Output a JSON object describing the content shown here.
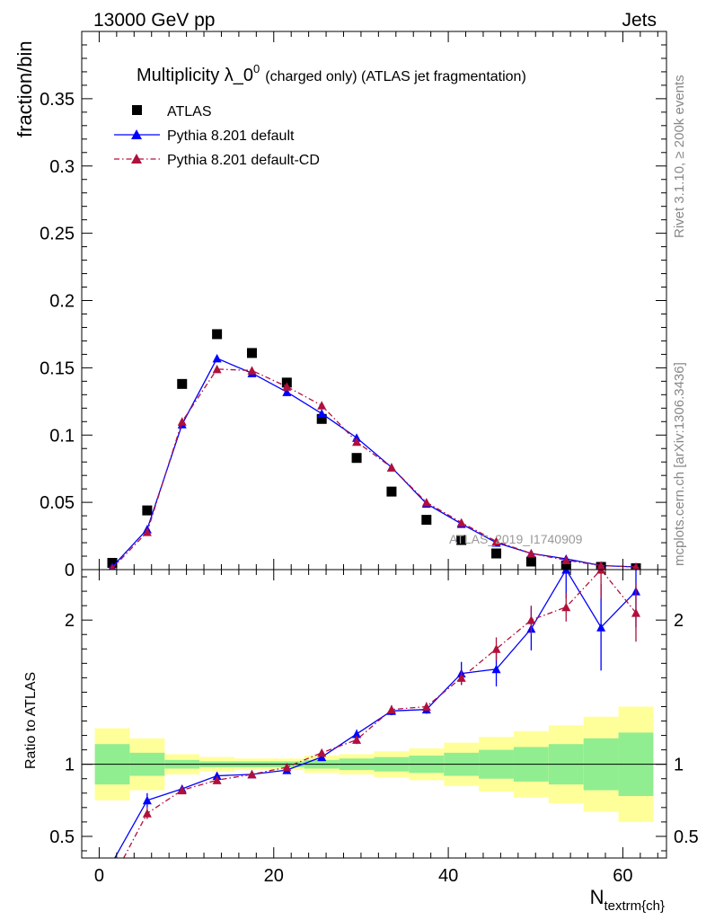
{
  "header": {
    "left": "13000 GeV pp",
    "right": "Jets"
  },
  "side_text": {
    "rivet": "Rivet 3.1.10, ≥ 200k events",
    "mcplots": "mcplots.cern.ch [arXiv:1306.3436]"
  },
  "chart_data": [
    {
      "type": "scatter",
      "title_main": "Multiplicity λ_0",
      "title_sup": "0",
      "title_rest": "(charged only) (ATLAS jet fragmentation)",
      "ylabel": "fraction/bin",
      "analysis_label": "ATLAS_2019_I1740909",
      "xlim": [
        -2,
        65
      ],
      "ylim": [
        0,
        0.4
      ],
      "yticks": [
        0,
        0.05,
        0.1,
        0.15,
        0.2,
        0.25,
        0.3,
        0.35
      ],
      "ytick_labels": [
        "0",
        "0.05",
        "0.1",
        "0.15",
        "0.2",
        "0.25",
        "0.3",
        "0.35"
      ],
      "legend": [
        "ATLAS",
        "Pythia 8.201 default",
        "Pythia 8.201 default-CD"
      ],
      "legend_position": "top-left",
      "x": [
        1.5,
        5.5,
        9.5,
        13.5,
        17.5,
        21.5,
        25.5,
        29.5,
        33.5,
        37.5,
        41.5,
        45.5,
        49.5,
        53.5,
        57.5,
        61.5
      ],
      "series": [
        {
          "name": "ATLAS",
          "color": "#000000",
          "marker": "square",
          "values": [
            0.005,
            0.044,
            0.138,
            0.175,
            0.161,
            0.139,
            0.112,
            0.083,
            0.058,
            0.037,
            0.022,
            0.012,
            0.006,
            0.003,
            0.002,
            0.001
          ]
        },
        {
          "name": "Pythia 8.201 default",
          "color": "#0000ff",
          "marker": "triangle",
          "line": "solid",
          "values": [
            0.002,
            0.03,
            0.108,
            0.157,
            0.146,
            0.132,
            0.116,
            0.098,
            0.076,
            0.049,
            0.034,
            0.02,
            0.012,
            0.008,
            0.003,
            0.002
          ]
        },
        {
          "name": "Pythia 8.201 default-CD",
          "color": "#b0103c",
          "marker": "triangle",
          "line": "dashdot",
          "values": [
            0.001,
            0.028,
            0.11,
            0.149,
            0.148,
            0.136,
            0.122,
            0.095,
            0.076,
            0.05,
            0.035,
            0.021,
            0.012,
            0.007,
            0.003,
            0.002
          ]
        }
      ]
    },
    {
      "type": "line",
      "ylabel": "Ratio to ATLAS",
      "xlabel": "N",
      "xlabel_sub": "textrm{ch}",
      "xlim": [
        -2,
        65
      ],
      "ylim": [
        0.35,
        2.35
      ],
      "yticks": [
        0.5,
        1,
        2
      ],
      "ytick_labels": [
        "0.5",
        "1",
        "2"
      ],
      "xticks": [
        0,
        20,
        40,
        60
      ],
      "xtick_labels": [
        "0",
        "20",
        "40",
        "60"
      ],
      "bins": [
        [
          -0.5,
          3.5
        ],
        [
          3.5,
          7.5
        ],
        [
          7.5,
          11.5
        ],
        [
          11.5,
          15.5
        ],
        [
          15.5,
          19.5
        ],
        [
          19.5,
          23.5
        ],
        [
          23.5,
          27.5
        ],
        [
          27.5,
          31.5
        ],
        [
          31.5,
          35.5
        ],
        [
          35.5,
          39.5
        ],
        [
          39.5,
          43.5
        ],
        [
          43.5,
          47.5
        ],
        [
          47.5,
          51.5
        ],
        [
          51.5,
          55.5
        ],
        [
          55.5,
          59.5
        ],
        [
          59.5,
          63.5
        ]
      ],
      "band_inner": [
        0.14,
        0.08,
        0.03,
        0.02,
        0.02,
        0.02,
        0.03,
        0.04,
        0.05,
        0.06,
        0.08,
        0.1,
        0.12,
        0.14,
        0.18,
        0.22
      ],
      "band_outer": [
        0.25,
        0.18,
        0.07,
        0.05,
        0.04,
        0.04,
        0.06,
        0.07,
        0.09,
        0.11,
        0.15,
        0.19,
        0.23,
        0.27,
        0.33,
        0.4
      ],
      "band_colors": {
        "inner": "#90ee90",
        "outer": "#ffff99"
      },
      "x": [
        1.5,
        5.5,
        9.5,
        13.5,
        17.5,
        21.5,
        25.5,
        29.5,
        33.5,
        37.5,
        41.5,
        45.5,
        49.5,
        53.5,
        57.5,
        61.5
      ],
      "series": [
        {
          "name": "Pythia 8.201 default",
          "color": "#0000ff",
          "values": [
            0.32,
            0.75,
            0.83,
            0.92,
            0.93,
            0.96,
            1.05,
            1.21,
            1.37,
            1.38,
            1.63,
            1.66,
            1.94,
            2.35,
            1.95,
            2.2
          ],
          "errors": [
            0.0,
            0.05,
            0.02,
            0.02,
            0.01,
            0.01,
            0.02,
            0.03,
            0.03,
            0.03,
            0.08,
            0.12,
            0.15,
            0.2,
            0.3,
            0.25
          ]
        },
        {
          "name": "Pythia 8.201 default-CD",
          "color": "#b0103c",
          "values": [
            0.2,
            0.66,
            0.82,
            0.89,
            0.93,
            0.98,
            1.08,
            1.17,
            1.38,
            1.4,
            1.6,
            1.8,
            2.0,
            2.09,
            2.35,
            2.05
          ],
          "errors": [
            0.0,
            0.04,
            0.02,
            0.02,
            0.01,
            0.01,
            0.02,
            0.03,
            0.03,
            0.03,
            0.05,
            0.08,
            0.1,
            0.1,
            0.2,
            0.2
          ]
        }
      ]
    }
  ]
}
